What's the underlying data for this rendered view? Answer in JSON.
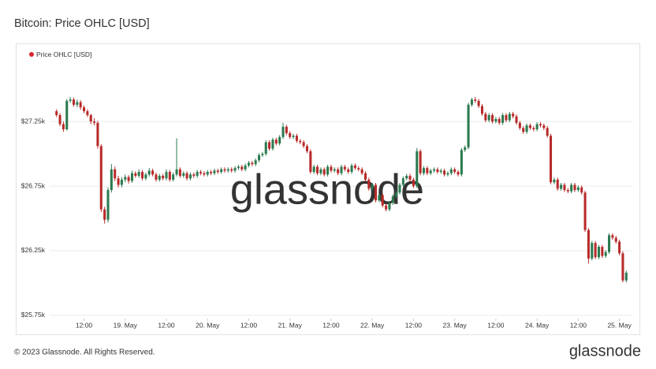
{
  "chart_data": {
    "type": "candlestick",
    "title": "Bitcoin: Price OHLC [USD]",
    "legend": {
      "name": "Price OHLC [USD]",
      "color": "#d7262b"
    },
    "up_color": "#2b7a4f",
    "down_color": "#b82a2a",
    "watermark": "glassnode",
    "ylim": [
      25725,
      27550
    ],
    "yticks": [
      {
        "value": 25750,
        "label": "$25.75k"
      },
      {
        "value": 26250,
        "label": "$26.25k"
      },
      {
        "value": 26750,
        "label": "$26.75k"
      },
      {
        "value": 27250,
        "label": "$27.25k"
      }
    ],
    "xlim": [
      -2,
      168
    ],
    "xticks": [
      {
        "value": 8,
        "label": "12:00"
      },
      {
        "value": 20,
        "label": "19. May"
      },
      {
        "value": 32,
        "label": "12:00"
      },
      {
        "value": 44,
        "label": "20. May"
      },
      {
        "value": 56,
        "label": "12:00"
      },
      {
        "value": 68,
        "label": "21. May"
      },
      {
        "value": 80,
        "label": "12:00"
      },
      {
        "value": 92,
        "label": "22. May"
      },
      {
        "value": 104,
        "label": "12:00"
      },
      {
        "value": 116,
        "label": "23. May"
      },
      {
        "value": 128,
        "label": "12:00"
      },
      {
        "value": 140,
        "label": "24. May"
      },
      {
        "value": 152,
        "label": "12:00"
      },
      {
        "value": 164,
        "label": "25. May"
      }
    ],
    "grid": true,
    "ohlc": [
      [
        27330,
        27345,
        27285,
        27300
      ],
      [
        27300,
        27315,
        27215,
        27230
      ],
      [
        27230,
        27250,
        27170,
        27190
      ],
      [
        27190,
        27425,
        27180,
        27410
      ],
      [
        27410,
        27440,
        27395,
        27420
      ],
      [
        27420,
        27435,
        27365,
        27380
      ],
      [
        27380,
        27420,
        27360,
        27400
      ],
      [
        27400,
        27415,
        27340,
        27360
      ],
      [
        27360,
        27375,
        27315,
        27330
      ],
      [
        27330,
        27345,
        27285,
        27300
      ],
      [
        27300,
        27310,
        27230,
        27250
      ],
      [
        27250,
        27275,
        27220,
        27240
      ],
      [
        27240,
        27255,
        27040,
        27060
      ],
      [
        27060,
        27075,
        26550,
        26570
      ],
      [
        26570,
        26590,
        26460,
        26490
      ],
      [
        26490,
        26740,
        26470,
        26720
      ],
      [
        26720,
        26920,
        26700,
        26880
      ],
      [
        26880,
        26900,
        26790,
        26810
      ],
      [
        26810,
        26830,
        26740,
        26760
      ],
      [
        26760,
        26820,
        26740,
        26800
      ],
      [
        26800,
        26840,
        26780,
        26820
      ],
      [
        26820,
        26835,
        26770,
        26790
      ],
      [
        26790,
        26870,
        26775,
        26850
      ],
      [
        26850,
        26865,
        26815,
        26830
      ],
      [
        26830,
        26880,
        26815,
        26860
      ],
      [
        26860,
        26875,
        26795,
        26810
      ],
      [
        26810,
        26855,
        26795,
        26840
      ],
      [
        26840,
        26890,
        26825,
        26870
      ],
      [
        26870,
        26885,
        26825,
        26840
      ],
      [
        26840,
        26855,
        26785,
        26800
      ],
      [
        26800,
        26845,
        26785,
        26830
      ],
      [
        26830,
        26845,
        26795,
        26810
      ],
      [
        26810,
        26880,
        26795,
        26860
      ],
      [
        26860,
        26875,
        26785,
        26800
      ],
      [
        26800,
        26855,
        26785,
        26840
      ],
      [
        26840,
        27120,
        26825,
        26880
      ],
      [
        26880,
        26895,
        26815,
        26830
      ],
      [
        26830,
        26865,
        26815,
        26850
      ],
      [
        26850,
        26865,
        26795,
        26810
      ],
      [
        26810,
        26855,
        26795,
        26840
      ],
      [
        26840,
        26855,
        26815,
        26830
      ],
      [
        26830,
        26875,
        26815,
        26860
      ],
      [
        26860,
        26875,
        26835,
        26850
      ],
      [
        26850,
        26865,
        26825,
        26840
      ],
      [
        26840,
        26875,
        26825,
        26860
      ],
      [
        26860,
        26875,
        26835,
        26850
      ],
      [
        26850,
        26885,
        26835,
        26870
      ],
      [
        26870,
        26885,
        26845,
        26860
      ],
      [
        26860,
        26895,
        26845,
        26880
      ],
      [
        26880,
        26895,
        26855,
        26870
      ],
      [
        26870,
        26895,
        26855,
        26880
      ],
      [
        26880,
        26895,
        26855,
        26870
      ],
      [
        26870,
        26905,
        26855,
        26890
      ],
      [
        26890,
        26915,
        26875,
        26900
      ],
      [
        26900,
        26915,
        26865,
        26880
      ],
      [
        26880,
        26925,
        26865,
        26910
      ],
      [
        26910,
        26945,
        26895,
        26930
      ],
      [
        26930,
        26945,
        26905,
        26920
      ],
      [
        26920,
        26965,
        26905,
        26950
      ],
      [
        26950,
        27005,
        26935,
        26990
      ],
      [
        26990,
        27015,
        26975,
        27000
      ],
      [
        27000,
        27105,
        26985,
        27090
      ],
      [
        27090,
        27105,
        27025,
        27040
      ],
      [
        27040,
        27125,
        27025,
        27110
      ],
      [
        27110,
        27125,
        27065,
        27080
      ],
      [
        27080,
        27145,
        27065,
        27130
      ],
      [
        27130,
        27240,
        27115,
        27210
      ],
      [
        27210,
        27225,
        27145,
        27160
      ],
      [
        27160,
        27175,
        27115,
        27130
      ],
      [
        27130,
        27155,
        27115,
        27140
      ],
      [
        27140,
        27155,
        27085,
        27100
      ],
      [
        27100,
        27115,
        27075,
        27090
      ],
      [
        27090,
        27105,
        27045,
        27060
      ],
      [
        27060,
        27075,
        27005,
        27020
      ],
      [
        27020,
        27035,
        26845,
        26860
      ],
      [
        26860,
        26915,
        26845,
        26900
      ],
      [
        26900,
        26915,
        26835,
        26850
      ],
      [
        26850,
        26895,
        26835,
        26880
      ],
      [
        26880,
        26895,
        26825,
        26840
      ],
      [
        26840,
        26915,
        26825,
        26900
      ],
      [
        26900,
        26915,
        26855,
        26870
      ],
      [
        26870,
        26895,
        26855,
        26880
      ],
      [
        26880,
        26895,
        26835,
        26850
      ],
      [
        26850,
        26915,
        26835,
        26900
      ],
      [
        26900,
        26915,
        26865,
        26880
      ],
      [
        26880,
        26895,
        26845,
        26860
      ],
      [
        26860,
        26925,
        26845,
        26910
      ],
      [
        26910,
        26925,
        26875,
        26890
      ],
      [
        26890,
        26905,
        26865,
        26880
      ],
      [
        26880,
        26895,
        26835,
        26850
      ],
      [
        26850,
        26865,
        26785,
        26800
      ],
      [
        26800,
        26815,
        26715,
        26730
      ],
      [
        26730,
        26775,
        26715,
        26760
      ],
      [
        26760,
        26775,
        26625,
        26640
      ],
      [
        26640,
        26695,
        26625,
        26680
      ],
      [
        26680,
        26695,
        26585,
        26600
      ],
      [
        26600,
        26615,
        26555,
        26570
      ],
      [
        26570,
        26635,
        26555,
        26620
      ],
      [
        26620,
        26685,
        26605,
        26670
      ],
      [
        26670,
        26715,
        26655,
        26700
      ],
      [
        26700,
        26775,
        26685,
        26760
      ],
      [
        26760,
        26825,
        26745,
        26810
      ],
      [
        26810,
        26845,
        26795,
        26830
      ],
      [
        26830,
        26845,
        26785,
        26800
      ],
      [
        26800,
        26815,
        26735,
        26750
      ],
      [
        26750,
        27045,
        26735,
        27020
      ],
      [
        27020,
        27035,
        26835,
        26850
      ],
      [
        26850,
        26905,
        26835,
        26890
      ],
      [
        26890,
        26905,
        26835,
        26850
      ],
      [
        26850,
        26885,
        26835,
        26870
      ],
      [
        26870,
        26895,
        26855,
        26880
      ],
      [
        26880,
        26895,
        26845,
        26860
      ],
      [
        26860,
        26885,
        26845,
        26870
      ],
      [
        26870,
        26885,
        26825,
        26840
      ],
      [
        26840,
        26865,
        26825,
        26850
      ],
      [
        26850,
        26895,
        26835,
        26880
      ],
      [
        26880,
        26895,
        26845,
        26860
      ],
      [
        26860,
        26875,
        26825,
        26840
      ],
      [
        26840,
        27045,
        26825,
        27030
      ],
      [
        27030,
        27065,
        27015,
        27050
      ],
      [
        27050,
        27395,
        27035,
        27380
      ],
      [
        27380,
        27435,
        27365,
        27420
      ],
      [
        27420,
        27440,
        27395,
        27410
      ],
      [
        27410,
        27425,
        27355,
        27370
      ],
      [
        27370,
        27385,
        27295,
        27310
      ],
      [
        27310,
        27325,
        27245,
        27260
      ],
      [
        27260,
        27315,
        27245,
        27300
      ],
      [
        27300,
        27315,
        27235,
        27250
      ],
      [
        27250,
        27285,
        27235,
        27270
      ],
      [
        27270,
        27285,
        27225,
        27240
      ],
      [
        27240,
        27315,
        27225,
        27300
      ],
      [
        27300,
        27315,
        27245,
        27260
      ],
      [
        27260,
        27325,
        27245,
        27310
      ],
      [
        27310,
        27325,
        27275,
        27290
      ],
      [
        27290,
        27305,
        27225,
        27240
      ],
      [
        27240,
        27255,
        27185,
        27200
      ],
      [
        27200,
        27215,
        27155,
        27170
      ],
      [
        27170,
        27235,
        27155,
        27220
      ],
      [
        27220,
        27235,
        27185,
        27200
      ],
      [
        27200,
        27215,
        27175,
        27190
      ],
      [
        27190,
        27245,
        27175,
        27230
      ],
      [
        27230,
        27245,
        27205,
        27220
      ],
      [
        27220,
        27235,
        27185,
        27200
      ],
      [
        27200,
        27215,
        27125,
        27140
      ],
      [
        27140,
        27155,
        26765,
        26780
      ],
      [
        26780,
        26815,
        26765,
        26800
      ],
      [
        26800,
        26815,
        26715,
        26730
      ],
      [
        26730,
        26775,
        26715,
        26760
      ],
      [
        26760,
        26775,
        26705,
        26720
      ],
      [
        26720,
        26735,
        26695,
        26710
      ],
      [
        26710,
        26775,
        26695,
        26760
      ],
      [
        26760,
        26775,
        26705,
        26720
      ],
      [
        26720,
        26755,
        26705,
        26740
      ],
      [
        26740,
        26755,
        26685,
        26700
      ],
      [
        26700,
        26715,
        26395,
        26410
      ],
      [
        26410,
        26425,
        26150,
        26190
      ],
      [
        26190,
        26325,
        26175,
        26310
      ],
      [
        26310,
        26325,
        26185,
        26200
      ],
      [
        26200,
        26295,
        26185,
        26280
      ],
      [
        26280,
        26295,
        26195,
        26210
      ],
      [
        26210,
        26255,
        26195,
        26240
      ],
      [
        26240,
        26385,
        26225,
        26370
      ],
      [
        26370,
        26385,
        26335,
        26350
      ],
      [
        26350,
        26365,
        26305,
        26320
      ],
      [
        26320,
        26335,
        26215,
        26230
      ],
      [
        26230,
        26245,
        26005,
        26020
      ],
      [
        26020,
        26095,
        26005,
        26080
      ]
    ]
  },
  "footer": "© 2023 Glassnode. All Rights Reserved.",
  "logo": "glassnode"
}
